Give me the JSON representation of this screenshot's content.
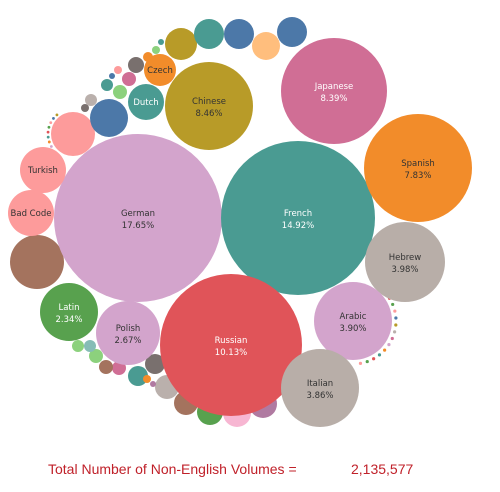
{
  "chart_data": {
    "type": "bubble",
    "title": "",
    "unit": "%",
    "bubbles": [
      {
        "name": "German",
        "value": 17.65,
        "label": "17.65%",
        "color": "#d3a4cc",
        "text_color": "#333333"
      },
      {
        "name": "French",
        "value": 14.92,
        "label": "14.92%",
        "color": "#4a9b92",
        "text_color": "#ffffff"
      },
      {
        "name": "Russian",
        "value": 10.13,
        "label": "10.13%",
        "color": "#e05459",
        "text_color": "#ffffff"
      },
      {
        "name": "Chinese",
        "value": 8.46,
        "label": "8.46%",
        "color": "#b89b28",
        "text_color": "#333333"
      },
      {
        "name": "Japanese",
        "value": 8.39,
        "label": "8.39%",
        "color": "#d06e95",
        "text_color": "#ffffff"
      },
      {
        "name": "Spanish",
        "value": 7.83,
        "label": "7.83%",
        "color": "#f28c2a",
        "text_color": "#333333"
      },
      {
        "name": "Hebrew",
        "value": 3.98,
        "label": "3.98%",
        "color": "#b8aea8",
        "text_color": "#333333"
      },
      {
        "name": "Arabic",
        "value": 3.9,
        "label": "3.90%",
        "color": "#d3a4cc",
        "text_color": "#333333"
      },
      {
        "name": "Italian",
        "value": 3.86,
        "label": "3.86%",
        "color": "#b8aea8",
        "text_color": "#333333"
      },
      {
        "name": "Polish",
        "value": 2.67,
        "label": "2.67%",
        "color": "#d3a4cc",
        "text_color": "#333333"
      },
      {
        "name": "Latin",
        "value": 2.34,
        "label": "2.34%",
        "color": "#58a14e",
        "text_color": "#ffffff"
      },
      {
        "name": "Bad Code",
        "label": "",
        "color": "#fd9b9b",
        "text_color": "#333333"
      },
      {
        "name": "Turkish",
        "label": "",
        "color": "#fd9b9b",
        "text_color": "#333333"
      },
      {
        "name": "Dutch",
        "label": "",
        "color": "#4a9b92",
        "text_color": "#ffffff"
      },
      {
        "name": "Czech",
        "label": "",
        "color": "#f28c2a",
        "text_color": "#333333"
      }
    ]
  },
  "footer": {
    "label": "Total Number of Non-English Volumes =",
    "value": "2,135,577"
  }
}
